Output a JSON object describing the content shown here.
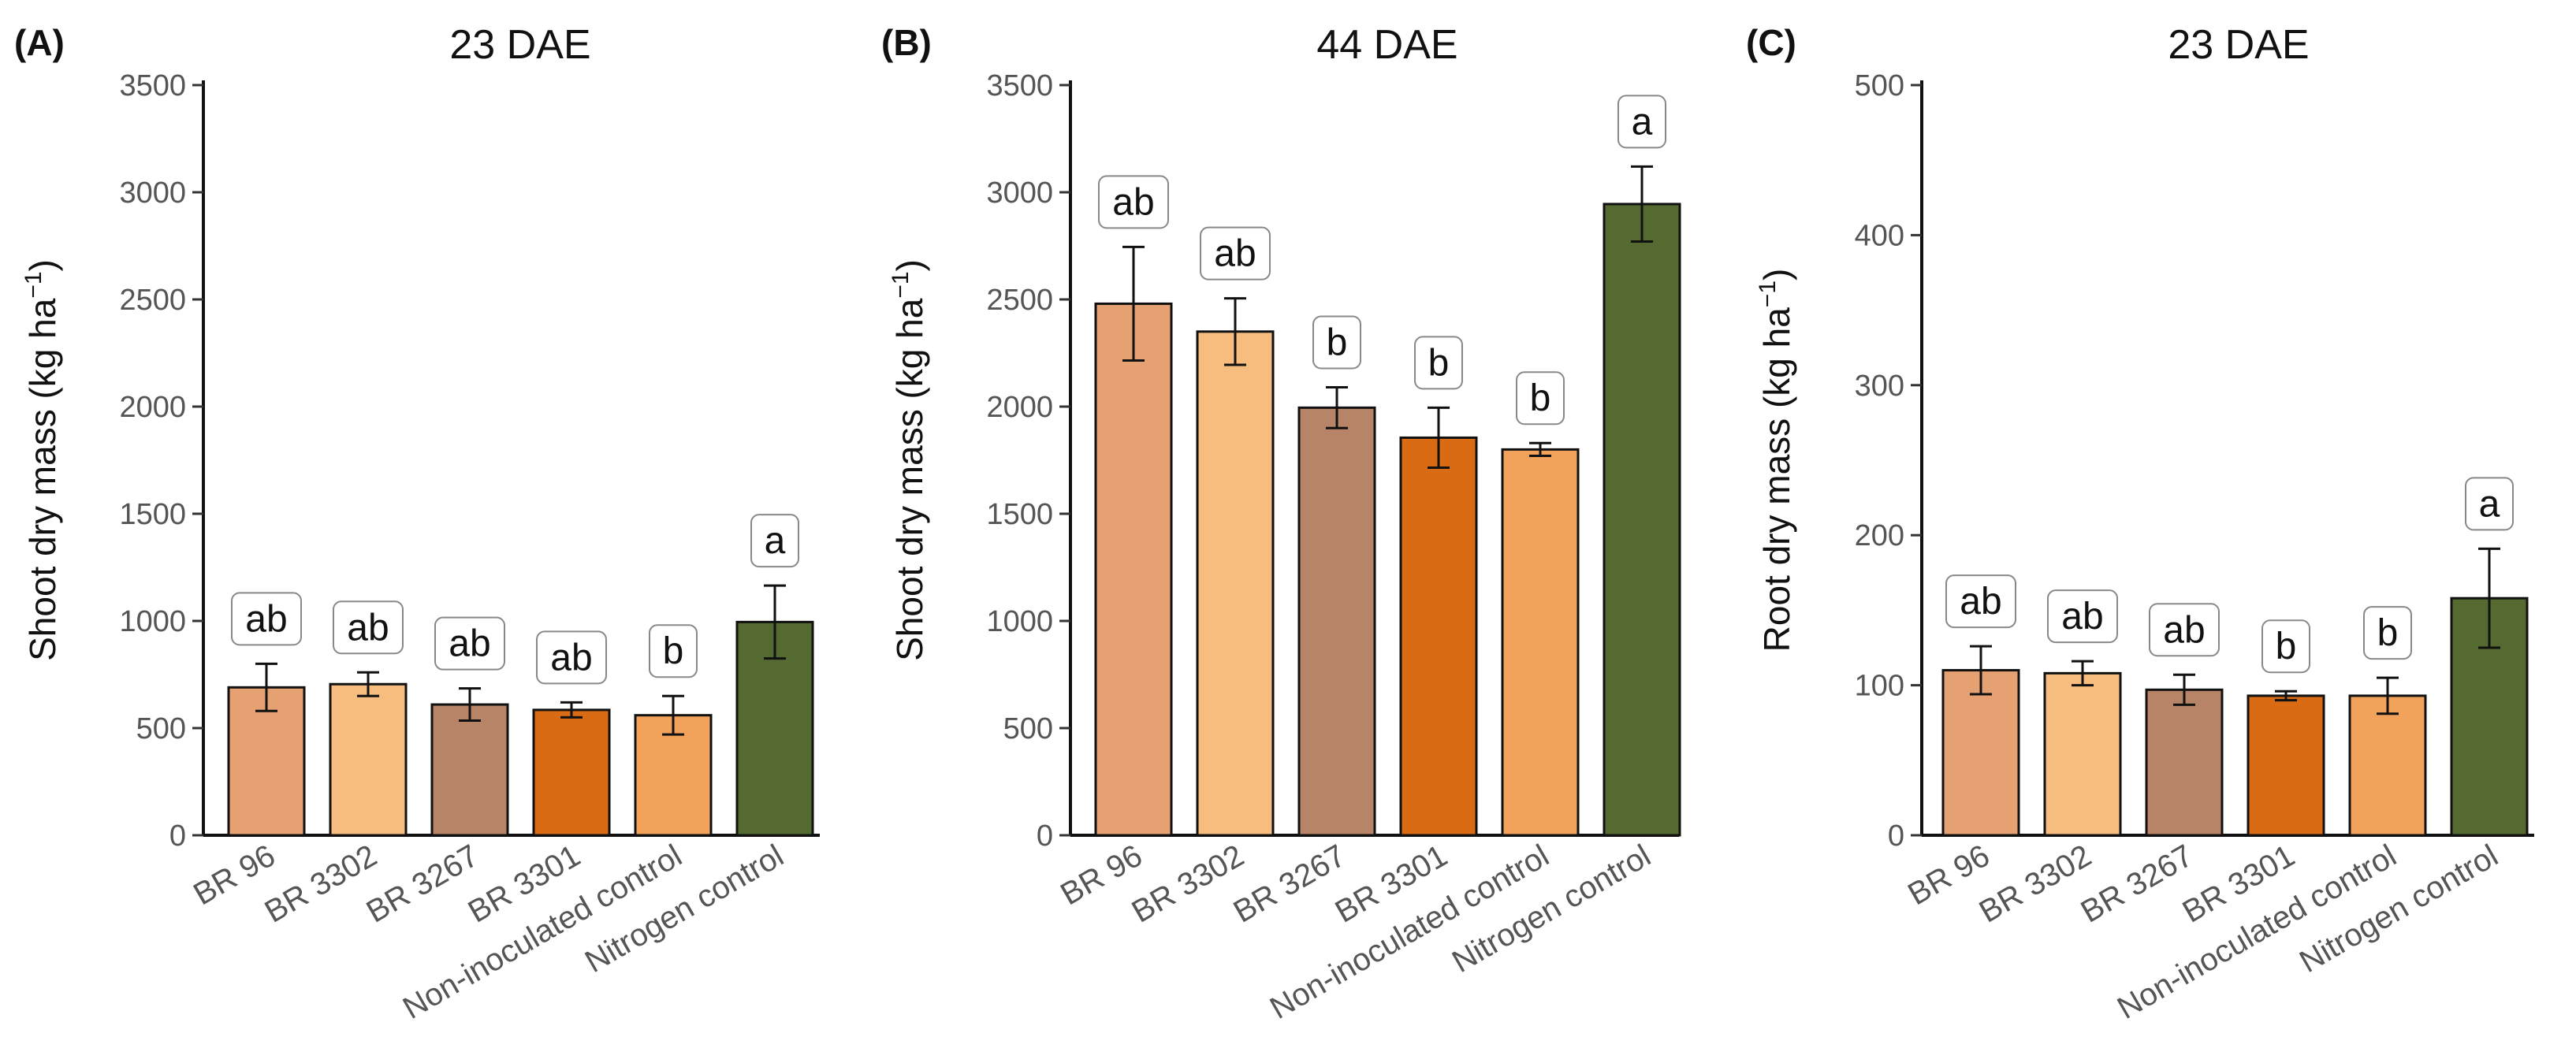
{
  "chart_data": [
    {
      "type": "bar",
      "panel_label": "(A)",
      "title": "23 DAE",
      "ylabel": "Shoot dry mass (kg ha",
      "ylabel_sup": "−1",
      "ylabel_close": ")",
      "ylim": [
        0,
        3500
      ],
      "yticks": [
        0,
        500,
        1000,
        1500,
        2000,
        2500,
        3000,
        3500
      ],
      "categories": [
        "BR 96",
        "BR 3302",
        "BR 3267",
        "BR 3301",
        "Non-inoculated control",
        "Nitrogen control"
      ],
      "values": [
        690,
        705,
        610,
        585,
        560,
        995
      ],
      "errors": [
        110,
        55,
        75,
        35,
        90,
        170
      ],
      "significance": [
        "ab",
        "ab",
        "ab",
        "ab",
        "b",
        "a"
      ]
    },
    {
      "type": "bar",
      "panel_label": "(B)",
      "title": "44 DAE",
      "ylabel": "Shoot dry mass (kg ha",
      "ylabel_sup": "−1",
      "ylabel_close": ")",
      "ylim": [
        0,
        3500
      ],
      "yticks": [
        0,
        500,
        1000,
        1500,
        2000,
        2500,
        3000,
        3500
      ],
      "categories": [
        "BR 96",
        "BR 3302",
        "BR 3267",
        "BR 3301",
        "Non-inoculated control",
        "Nitrogen control"
      ],
      "values": [
        2480,
        2350,
        1995,
        1855,
        1800,
        2945
      ],
      "errors": [
        265,
        155,
        95,
        140,
        30,
        175
      ],
      "significance": [
        "ab",
        "ab",
        "b",
        "b",
        "b",
        "a"
      ]
    },
    {
      "type": "bar",
      "panel_label": "(C)",
      "title": "23 DAE",
      "ylabel": "Root dry mass (kg ha",
      "ylabel_sup": "−1",
      "ylabel_close": ")",
      "ylim": [
        0,
        500
      ],
      "yticks": [
        0,
        100,
        200,
        300,
        400,
        500
      ],
      "categories": [
        "BR 96",
        "BR 3302",
        "BR 3267",
        "BR 3301",
        "Non-inoculated control",
        "Nitrogen control"
      ],
      "values": [
        110,
        108,
        97,
        93,
        93,
        158
      ],
      "errors": [
        16,
        8,
        10,
        3,
        12,
        33
      ],
      "significance": [
        "ab",
        "ab",
        "ab",
        "b",
        "b",
        "a"
      ]
    }
  ],
  "colors": [
    "#e5a172",
    "#f6bd7f",
    "#b88467",
    "#d96b15",
    "#f2a25a",
    "#546a30"
  ]
}
